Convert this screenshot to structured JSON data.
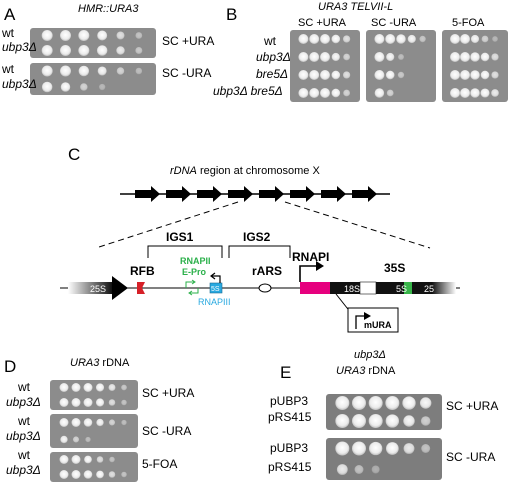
{
  "panelA": {
    "letter": "A",
    "header": "HMR::URA3",
    "rows": [
      {
        "labels": [
          "wt",
          "ubp3Δ"
        ],
        "condition": "SC +URA"
      },
      {
        "labels": [
          "wt",
          "ubp3Δ"
        ],
        "condition": "SC -URA"
      }
    ]
  },
  "panelB": {
    "letter": "B",
    "header": "URA3 TELVII-L",
    "conditions": [
      "SC +URA",
      "SC -URA",
      "5-FOA"
    ],
    "strains": [
      "wt",
      "ubp3Δ",
      "bre5Δ",
      "ubp3Δ bre5Δ"
    ]
  },
  "panelC": {
    "letter": "C",
    "title_italic": "rDNA",
    "title_rest": " region at chromosome X",
    "labels": {
      "igs1": "IGS1",
      "igs2": "IGS2",
      "rnapii": "RNAPII",
      "epro": "E-Pro",
      "rfb": "RFB",
      "rars": "rARS",
      "rnapi": "RNAPI",
      "s35": "35S",
      "s25a": "25S",
      "s5a": "5S",
      "rnapiii": "RNAPIII",
      "s18": "18S",
      "s5b": "5S",
      "s25b": "25",
      "mura": "mURA"
    },
    "colors": {
      "rfb": "#d62028",
      "rnapii": "#2bb04a",
      "rnapiii": "#29a9e0",
      "magenta": "#e6007e",
      "green": "#39b54a"
    }
  },
  "panelD": {
    "letter": "D",
    "header_italic": "URA3",
    "header_rest": " rDNA",
    "rows": [
      {
        "labels": [
          "wt",
          "ubp3Δ"
        ],
        "condition": "SC +URA"
      },
      {
        "labels": [
          "wt",
          "ubp3Δ"
        ],
        "condition": "SC -URA"
      },
      {
        "labels": [
          "wt",
          "ubp3Δ"
        ],
        "condition": "5-FOA"
      }
    ]
  },
  "panelE": {
    "letter": "E",
    "header_line1": "ubp3Δ",
    "header_line2_italic": "URA3",
    "header_line2_rest": " rDNA",
    "rows": [
      {
        "labels": [
          "pUBP3",
          "pRS415"
        ],
        "condition": "SC +URA"
      },
      {
        "labels": [
          "pUBP3",
          "pRS415"
        ],
        "condition": "SC -URA"
      }
    ]
  }
}
